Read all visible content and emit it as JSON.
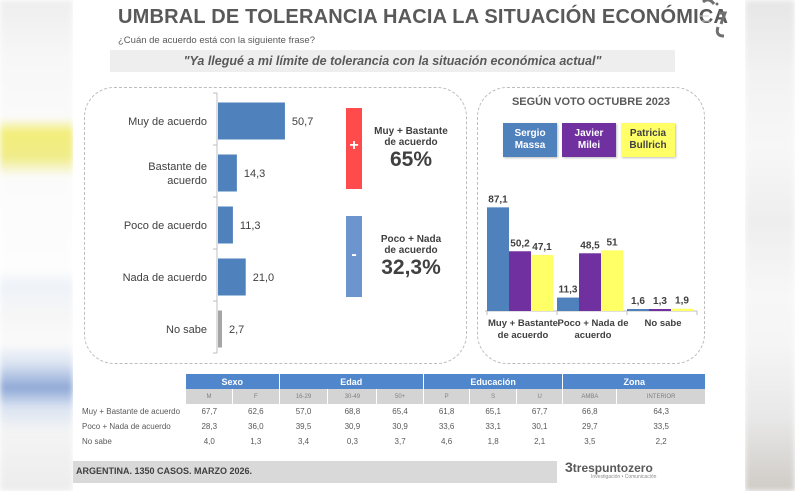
{
  "header": {
    "title": "UMBRAL DE TOLERANCIA HACIA LA SITUACIÓN ECONÓMICA",
    "subtitle": "¿Cuán de acuerdo está con la siguiente frase?",
    "quote": "\"Ya llegué a mi límite de tolerancia con la situación económica actual\""
  },
  "summary": {
    "positive": {
      "sign": "+",
      "caption_line1": "Muy + Bastante",
      "caption_line2": "de acuerdo",
      "value": "65%",
      "color": "#ff4b4b"
    },
    "negative": {
      "sign": "-",
      "caption_line1": "Poco + Nada",
      "caption_line2": "de acuerdo",
      "value": "32,3%",
      "color": "#6b95cc"
    }
  },
  "chart_data": [
    {
      "type": "bar",
      "orientation": "horizontal",
      "title": "",
      "categories": [
        [
          "Muy de acuerdo"
        ],
        [
          "Bastante de",
          "acuerdo"
        ],
        [
          "Poco de acuerdo"
        ],
        [
          "Nada de acuerdo"
        ],
        [
          "No sabe"
        ]
      ],
      "values": [
        50.7,
        14.3,
        11.3,
        21.0,
        2.7
      ],
      "labels": [
        "50,7",
        "14,3",
        "11,3",
        "21,0",
        "2,7"
      ],
      "colors": [
        "#4f81bd",
        "#4f81bd",
        "#4f81bd",
        "#4f81bd",
        "#a6a6a6"
      ],
      "xlim": [
        0,
        60
      ],
      "grid": false
    },
    {
      "type": "bar",
      "orientation": "vertical",
      "title": "SEGÚN VOTO OCTUBRE 2023",
      "categories": [
        [
          "Muy + Bastante",
          "de acuerdo"
        ],
        [
          "Poco + Nada de",
          "acuerdo"
        ],
        [
          "No sabe"
        ]
      ],
      "series": [
        {
          "name": "Sergio Massa",
          "legend": [
            "Sergio",
            "Massa"
          ],
          "color": "#4f81bd",
          "text_color": "#ffffff",
          "values": [
            87.1,
            11.3,
            1.6
          ],
          "labels": [
            "87,1",
            "11,3",
            "1,6"
          ]
        },
        {
          "name": "Javier Milei",
          "legend": [
            "Javier",
            "Milei"
          ],
          "color": "#7030a0",
          "text_color": "#ffffff",
          "values": [
            50.2,
            48.5,
            1.3
          ],
          "labels": [
            "50,2",
            "48,5",
            "1,3"
          ]
        },
        {
          "name": "Patricia Bullrich",
          "legend": [
            "Patricia",
            "Bullrich"
          ],
          "color": "#ffff66",
          "text_color": "#404040",
          "values": [
            47.1,
            51,
            1.9
          ],
          "labels": [
            "47,1",
            "51",
            "1,9"
          ]
        }
      ],
      "ylim": [
        0,
        100
      ],
      "grid": false,
      "legend_position": "top"
    },
    {
      "type": "table",
      "groups": [
        {
          "label": "Sexo",
          "columns": [
            "M",
            "F"
          ]
        },
        {
          "label": "Edad",
          "columns": [
            "16-29",
            "30-49",
            "50+"
          ]
        },
        {
          "label": "Educación",
          "columns": [
            "P",
            "S",
            "U"
          ]
        },
        {
          "label": "Zona",
          "columns": [
            "AMBA",
            "INTERIOR"
          ]
        }
      ],
      "rows": [
        {
          "label": "Muy + Bastante de acuerdo",
          "values": [
            "67,7",
            "62,6",
            "57,0",
            "68,8",
            "65,4",
            "61,8",
            "65,1",
            "67,7",
            "66,8",
            "64,3"
          ]
        },
        {
          "label": "Poco + Nada de acuerdo",
          "values": [
            "28,3",
            "36,0",
            "39,5",
            "30,9",
            "30,9",
            "33,6",
            "33,1",
            "30,1",
            "29,7",
            "33,5"
          ]
        },
        {
          "label": "No sabe",
          "values": [
            "4,0",
            "1,3",
            "3,4",
            "0,3",
            "3,7",
            "4,6",
            "1,8",
            "2,1",
            "3,5",
            "2,2"
          ]
        }
      ]
    }
  ],
  "footer": {
    "source": "ARGENTINA. 1350 CASOS. MARZO 2026.",
    "brand_name": "trespuntozero",
    "brand_tagline": "Investigación • Comunicación"
  }
}
